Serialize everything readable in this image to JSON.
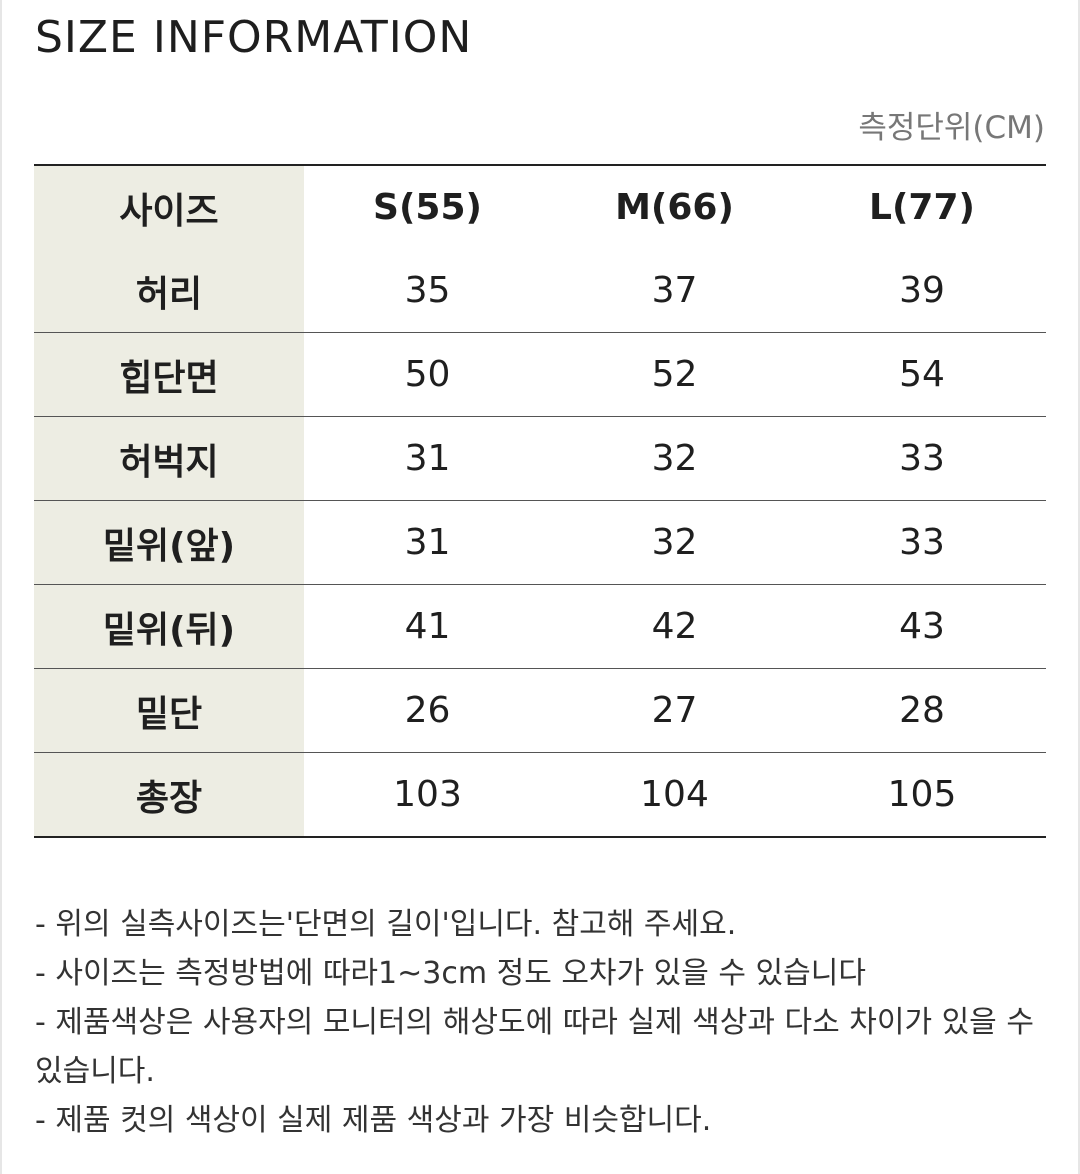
{
  "title": "SIZE INFORMATION",
  "unit_label": "측정단위(CM)",
  "table": {
    "header": [
      "사이즈",
      "S(55)",
      "M(66)",
      "L(77)"
    ],
    "rows": [
      {
        "label": "허리",
        "values": [
          "35",
          "37",
          "39"
        ]
      },
      {
        "label": "힙단면",
        "values": [
          "50",
          "52",
          "54"
        ]
      },
      {
        "label": "허벅지",
        "values": [
          "31",
          "32",
          "33"
        ]
      },
      {
        "label": "밑위(앞)",
        "values": [
          "31",
          "32",
          "33"
        ]
      },
      {
        "label": "밑위(뒤)",
        "values": [
          "41",
          "42",
          "43"
        ]
      },
      {
        "label": "밑단",
        "values": [
          "26",
          "27",
          "28"
        ]
      },
      {
        "label": "총장",
        "values": [
          "103",
          "104",
          "105"
        ]
      }
    ]
  },
  "notes": [
    "- 위의 실측사이즈는'단면의 길이'입니다. 참고해 주세요.",
    "- 사이즈는 측정방법에 따라1~3cm 정도 오차가 있을 수 있습니다",
    "- 제품색상은 사용자의 모니터의 해상도에 따라 실제 색상과 다소 차이가 있을 수 있습니다.",
    "- 제품 컷의 색상이 실제 제품 색상과 가장 비슷합니다."
  ],
  "colors": {
    "label_column_bg": "#edede3",
    "rule_line": "#222222",
    "unit_text": "#777777"
  }
}
